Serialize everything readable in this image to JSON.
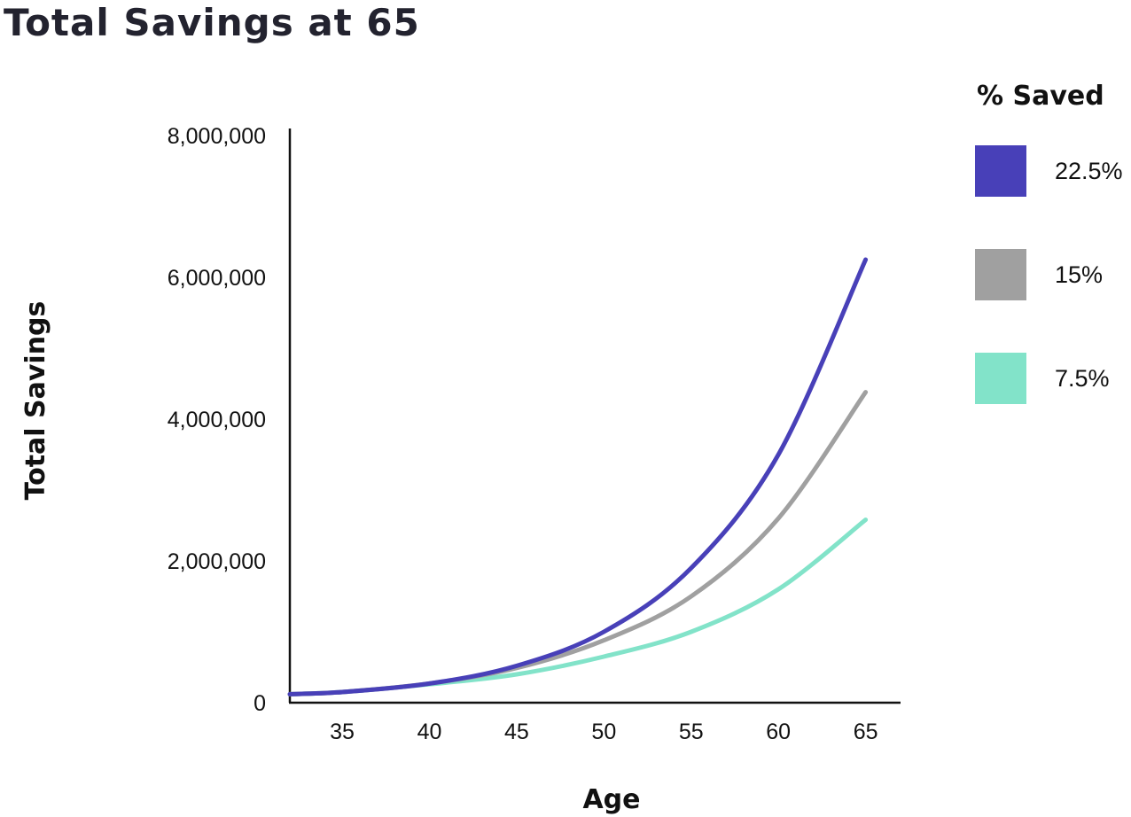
{
  "chart_data": {
    "type": "line",
    "title": "Total Savings at 65",
    "xlabel": "Age",
    "ylabel": "Total Savings",
    "xlim": [
      32,
      67
    ],
    "ylim": [
      0,
      8000000
    ],
    "x_ticks": [
      35,
      40,
      45,
      50,
      55,
      60,
      65
    ],
    "y_ticks": [
      0,
      2000000,
      4000000,
      6000000,
      8000000
    ],
    "y_tick_labels": [
      "0",
      "2,000,000",
      "4,000,000",
      "6,000,000",
      "8,000,000"
    ],
    "grid": false,
    "legend": {
      "title": "% Saved",
      "position": "right"
    },
    "x": [
      32,
      35,
      40,
      45,
      50,
      55,
      60,
      65
    ],
    "series": [
      {
        "name": "22.5%",
        "color": "#4840b8",
        "values": [
          120000,
          150000,
          270000,
          520000,
          1000000,
          1900000,
          3500000,
          6250000
        ]
      },
      {
        "name": "15%",
        "color": "#a0a0a0",
        "values": [
          120000,
          150000,
          270000,
          490000,
          880000,
          1500000,
          2600000,
          4380000
        ]
      },
      {
        "name": "7.5%",
        "color": "#82e3c9",
        "values": [
          120000,
          150000,
          260000,
          400000,
          650000,
          1000000,
          1600000,
          2580000
        ]
      }
    ]
  }
}
